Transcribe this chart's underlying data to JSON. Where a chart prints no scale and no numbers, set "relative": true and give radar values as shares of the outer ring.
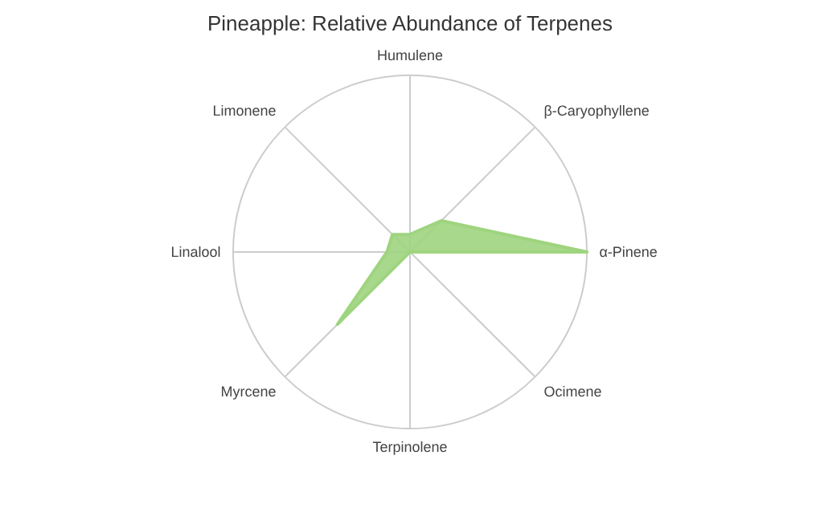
{
  "chart_data": {
    "type": "radar",
    "title": "Pineapple: Relative Abundance of Terpenes",
    "relative": true,
    "categories": [
      "Humulene",
      "β-Caryophyllene",
      "α-Pinene",
      "Ocimene",
      "Terpinolene",
      "Myrcene",
      "Linalool",
      "Limonene"
    ],
    "series": [
      {
        "color": "#9fd47f",
        "values": [
          0.1,
          0.25,
          1.0,
          0,
          0,
          0.58,
          0.13,
          0.14
        ]
      }
    ]
  }
}
